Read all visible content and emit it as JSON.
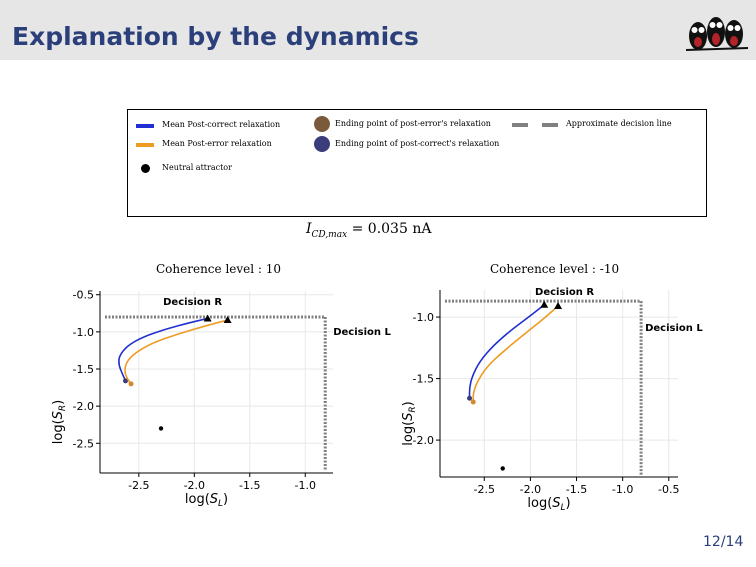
{
  "header": {
    "title": "Explanation by the dynamics"
  },
  "legend": {
    "items": [
      {
        "label": "Mean Post-correct relaxation",
        "color": "#1f2fd1",
        "icon": "line"
      },
      {
        "label": "Mean Post-error relaxation",
        "color": "#ee9b22",
        "icon": "line"
      },
      {
        "label": "Neutral attractor",
        "color": "#000000",
        "icon": "dot"
      },
      {
        "label": "Ending point of post-error's relaxation",
        "color": "#7a5a3a",
        "icon": "dot"
      },
      {
        "label": "Ending point of post-correct's relaxation",
        "color": "#3b3c7a",
        "icon": "dot"
      },
      {
        "label": "Approximate decision line",
        "color": "#808080",
        "icon": "dashed-line"
      }
    ]
  },
  "parameter_label": "I_{CD,max} = 0.035 nA",
  "page_number": "12/14",
  "chart_data": [
    {
      "type": "line",
      "title": "Coherence level : 10",
      "xlabel": "log(S_L)",
      "ylabel": "log(S_R)",
      "xlim": [
        -2.85,
        -0.75
      ],
      "ylim": [
        -2.9,
        -0.45
      ],
      "xticks": [
        -2.5,
        -2.0,
        -1.5,
        -1.0
      ],
      "xticklabels": [
        "-2.5",
        "-2.0",
        "-1.5",
        "-1.0"
      ],
      "yticks": [
        -0.5,
        -1.0,
        -1.5,
        -2.0,
        -2.5
      ],
      "yticklabels": [
        "-0.5",
        "-1.0",
        "-1.5",
        "-2.0",
        "-2.5"
      ],
      "grid": true,
      "annotations": [
        "Decision R",
        "Decision L"
      ],
      "decision_lines": {
        "horizontal_y": -0.8,
        "vertical_x": -0.82
      },
      "neutral_attractor": {
        "x": -2.3,
        "y": -2.3
      },
      "series": [
        {
          "name": "Mean Post-correct relaxation",
          "color": "#1f2fd1",
          "x": [
            -1.88,
            -2.05,
            -2.25,
            -2.45,
            -2.6,
            -2.68,
            -2.68,
            -2.65,
            -2.62
          ],
          "y": [
            -0.82,
            -0.88,
            -0.96,
            -1.06,
            -1.18,
            -1.33,
            -1.45,
            -1.56,
            -1.66
          ],
          "start_marker": {
            "x": -1.88,
            "y": -0.82
          },
          "end_point": {
            "x": -2.62,
            "y": -1.66,
            "color": "#3b3c7a"
          }
        },
        {
          "name": "Mean Post-error relaxation",
          "color": "#ee9b22",
          "x": [
            -1.7,
            -1.9,
            -2.15,
            -2.38,
            -2.53,
            -2.61,
            -2.63,
            -2.61,
            -2.57
          ],
          "y": [
            -0.84,
            -0.92,
            -1.03,
            -1.15,
            -1.28,
            -1.4,
            -1.52,
            -1.62,
            -1.7
          ],
          "start_marker": {
            "x": -1.7,
            "y": -0.84
          },
          "end_point": {
            "x": -2.57,
            "y": -1.7,
            "color": "#7a5a3a"
          }
        }
      ]
    },
    {
      "type": "line",
      "title": "Coherence level : -10",
      "xlabel": "log(S_L)",
      "ylabel": "log(S_R)",
      "xlim": [
        -2.98,
        -0.4
      ],
      "ylim": [
        -2.3,
        -0.78
      ],
      "xticks": [
        -2.5,
        -2.0,
        -1.5,
        -1.0,
        -0.5
      ],
      "xticklabels": [
        "-2.5",
        "-2.0",
        "-1.5",
        "-1.0",
        "-0.5"
      ],
      "yticks": [
        -1.0,
        -1.5,
        -2.0
      ],
      "yticklabels": [
        "-1.0",
        "-1.5",
        "-2.0"
      ],
      "grid": true,
      "annotations": [
        "Decision R",
        "Decision L"
      ],
      "decision_lines": {
        "horizontal_y": -0.87,
        "vertical_x": -0.8
      },
      "neutral_attractor": {
        "x": -2.3,
        "y": -2.23
      },
      "series": [
        {
          "name": "Mean Post-correct relaxation",
          "color": "#1f2fd1",
          "x": [
            -1.85,
            -2.0,
            -2.2,
            -2.4,
            -2.55,
            -2.63,
            -2.66,
            -2.66
          ],
          "y": [
            -0.9,
            -0.99,
            -1.1,
            -1.23,
            -1.36,
            -1.48,
            -1.57,
            -1.66
          ],
          "start_marker": {
            "x": -1.85,
            "y": -0.9
          },
          "end_point": {
            "x": -2.66,
            "y": -1.66,
            "color": "#3b3c7a"
          }
        },
        {
          "name": "Mean Post-error relaxation",
          "color": "#ee9b22",
          "x": [
            -1.7,
            -1.85,
            -2.05,
            -2.28,
            -2.47,
            -2.58,
            -2.62,
            -2.62
          ],
          "y": [
            -0.91,
            -1.01,
            -1.13,
            -1.27,
            -1.4,
            -1.53,
            -1.62,
            -1.69
          ],
          "start_marker": {
            "x": -1.7,
            "y": -0.91
          },
          "end_point": {
            "x": -2.62,
            "y": -1.69,
            "color": "#7a5a3a"
          }
        }
      ]
    }
  ]
}
